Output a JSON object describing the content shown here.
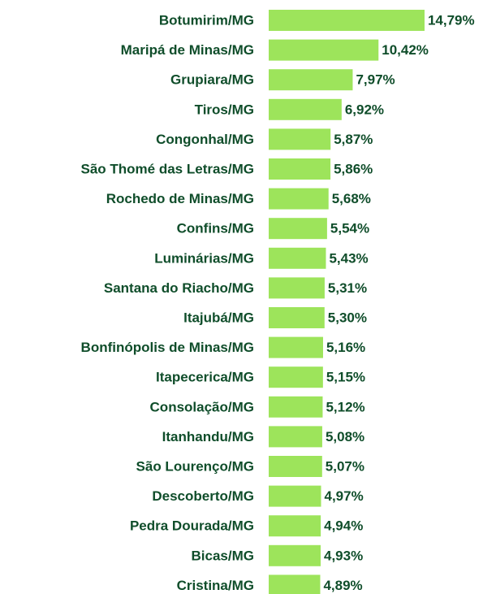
{
  "chart_data": {
    "type": "bar",
    "orientation": "horizontal",
    "color": "#9de45b",
    "categories": [
      "Botumirim/MG",
      "Maripá de Minas/MG",
      "Grupiara/MG",
      "Tiros/MG",
      "Congonhal/MG",
      "São Thomé das Letras/MG",
      "Rochedo de Minas/MG",
      "Confins/MG",
      "Luminárias/MG",
      "Santana do Riacho/MG",
      "Itajubá/MG",
      "Bonfinópolis de Minas/MG",
      "Itapecerica/MG",
      "Consolação/MG",
      "Itanhandu/MG",
      "São Lourenço/MG",
      "Descoberto/MG",
      "Pedra Dourada/MG",
      "Bicas/MG",
      "Cristina/MG"
    ],
    "values": [
      14.79,
      10.42,
      7.97,
      6.92,
      5.87,
      5.86,
      5.68,
      5.54,
      5.43,
      5.31,
      5.3,
      5.16,
      5.15,
      5.12,
      5.08,
      5.07,
      4.97,
      4.94,
      4.93,
      4.89
    ],
    "value_labels": [
      "14,79%",
      "10,42%",
      "7,97%",
      "6,92%",
      "5,87%",
      "5,86%",
      "5,68%",
      "5,54%",
      "5,43%",
      "5,31%",
      "5,30%",
      "5,16%",
      "5,15%",
      "5,12%",
      "5,08%",
      "5,07%",
      "4,97%",
      "4,94%",
      "4,93%",
      "4,89%"
    ]
  }
}
